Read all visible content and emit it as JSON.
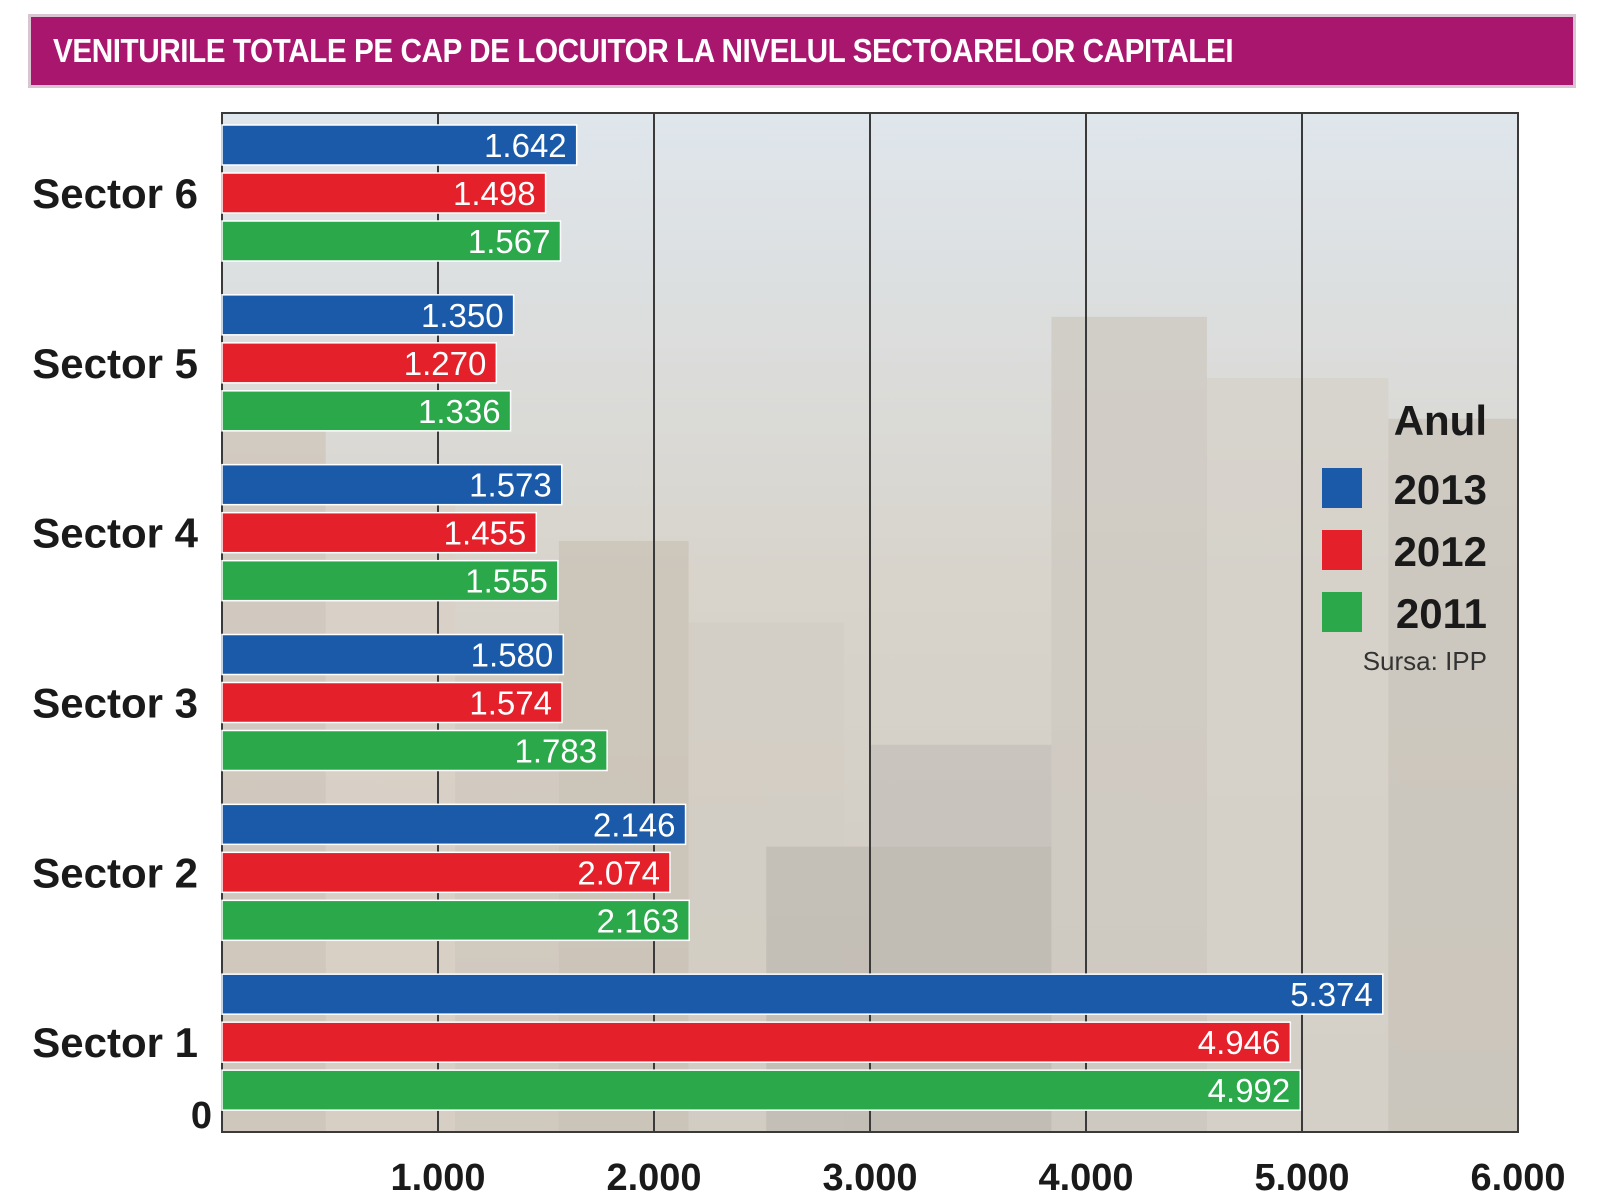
{
  "title": "VENITURILE TOTALE PE CAP DE LOCUITOR LA NIVELUL SECTOARELOR CAPITALEI",
  "colors": {
    "title_bg": "#a8166e",
    "s2013": "#1b5aa8",
    "s2012": "#e4202a",
    "s2011": "#2aa84a"
  },
  "chart_data": {
    "type": "bar",
    "orientation": "horizontal",
    "categories": [
      "Sector 6",
      "Sector 5",
      "Sector 4",
      "Sector 3",
      "Sector 2",
      "Sector 1"
    ],
    "series": [
      {
        "name": "2013",
        "values": [
          1642,
          1350,
          1573,
          1580,
          2146,
          5374
        ],
        "labels": [
          "1.642",
          "1.350",
          "1.573",
          "1.580",
          "2.146",
          "5.374"
        ]
      },
      {
        "name": "2012",
        "values": [
          1498,
          1270,
          1455,
          1574,
          2074,
          4946
        ],
        "labels": [
          "1.498",
          "1.270",
          "1.455",
          "1.574",
          "2.074",
          "4.946"
        ]
      },
      {
        "name": "2011",
        "values": [
          1567,
          1336,
          1555,
          1783,
          2163,
          4992
        ],
        "labels": [
          "1.567",
          "1.336",
          "1.555",
          "1.783",
          "2.163",
          "4.992"
        ]
      }
    ],
    "xlim": [
      0,
      6000
    ],
    "ticks": [
      {
        "value": 0,
        "label": "0"
      },
      {
        "value": 1000,
        "label": "1.000"
      },
      {
        "value": 2000,
        "label": "2.000"
      },
      {
        "value": 3000,
        "label": "3.000"
      },
      {
        "value": 4000,
        "label": "4.000"
      },
      {
        "value": 5000,
        "label": "5.000"
      },
      {
        "value": 6000,
        "label": "6.000"
      }
    ],
    "grid": true,
    "legend": {
      "title": "Anul",
      "placement": "right",
      "entries": [
        "2013",
        "2012",
        "2011"
      ]
    },
    "source": "Sursa: IPP"
  }
}
